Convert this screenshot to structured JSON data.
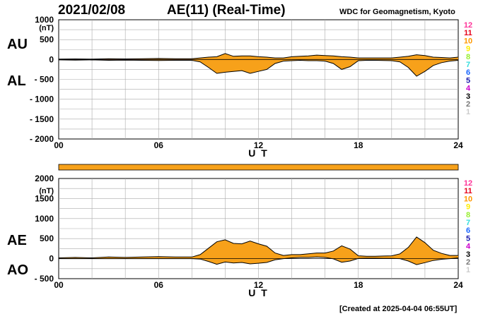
{
  "header": {
    "date": "2021/02/08",
    "title": "AE(11) (Real-Time)",
    "source": "WDC for Geomagnetism, Kyoto",
    "created": "[Created at 2025-04-04 06:55UT]"
  },
  "side_labels": {
    "top_upper": "AU",
    "top_lower": "AL",
    "bottom_upper": "AE",
    "bottom_lower": "AO"
  },
  "colors": {
    "fill": "#f7a11a",
    "outline": "#000000",
    "grid": "#aaaaaa"
  },
  "legend": {
    "items": [
      {
        "label": "12",
        "color": "#ff3399"
      },
      {
        "label": "11",
        "color": "#e6001a"
      },
      {
        "label": "10",
        "color": "#ff9900"
      },
      {
        "label": "9",
        "color": "#ffee00"
      },
      {
        "label": "8",
        "color": "#99ee33"
      },
      {
        "label": "7",
        "color": "#33dddd"
      },
      {
        "label": "6",
        "color": "#1a66ff"
      },
      {
        "label": "5",
        "color": "#1a1aaa"
      },
      {
        "label": "4",
        "color": "#cc00cc"
      },
      {
        "label": "3",
        "color": "#000000"
      },
      {
        "label": "2",
        "color": "#777777"
      },
      {
        "label": "1",
        "color": "#cccccc"
      }
    ]
  },
  "chart_data": [
    {
      "type": "area",
      "xlabel": "U T",
      "ylabel": "(nT)",
      "xlim": [
        0,
        24
      ],
      "ylim": [
        -2000,
        1000
      ],
      "x_ticks": [
        "00",
        "06",
        "12",
        "18",
        "24"
      ],
      "y_ticks": [
        "1000",
        "500",
        "0",
        "- 500",
        "- 1000",
        "- 1500",
        "- 2000"
      ],
      "grid": true,
      "series": [
        {
          "name": "AU",
          "x": [
            0,
            1,
            2,
            3,
            4,
            5,
            6,
            7,
            8,
            8.5,
            9,
            9.5,
            10,
            10.5,
            11,
            11.5,
            12,
            12.5,
            13,
            13.5,
            14,
            14.5,
            15,
            15.5,
            16,
            16.5,
            17,
            17.5,
            18,
            18.5,
            19,
            19.5,
            20,
            20.5,
            21,
            21.5,
            22,
            22.5,
            23,
            23.5,
            24
          ],
          "values": [
            10,
            15,
            10,
            20,
            15,
            20,
            25,
            20,
            20,
            40,
            60,
            70,
            150,
            80,
            90,
            90,
            70,
            60,
            40,
            40,
            70,
            80,
            90,
            110,
            100,
            90,
            70,
            60,
            40,
            40,
            40,
            40,
            40,
            60,
            80,
            120,
            100,
            60,
            50,
            40,
            60
          ]
        },
        {
          "name": "AL",
          "x": [
            0,
            1,
            2,
            3,
            4,
            5,
            6,
            7,
            8,
            8.5,
            9,
            9.5,
            10,
            10.5,
            11,
            11.5,
            12,
            12.5,
            13,
            13.5,
            14,
            14.5,
            15,
            15.5,
            16,
            16.5,
            17,
            17.5,
            18,
            18.5,
            19,
            19.5,
            20,
            20.5,
            21,
            21.5,
            22,
            22.5,
            23,
            23.5,
            24
          ],
          "values": [
            -10,
            -15,
            -10,
            -20,
            -15,
            -20,
            -25,
            -20,
            -20,
            -60,
            -200,
            -350,
            -320,
            -300,
            -280,
            -350,
            -300,
            -250,
            -100,
            -40,
            -30,
            -20,
            -30,
            -30,
            -40,
            -100,
            -250,
            -180,
            -30,
            -20,
            -20,
            -25,
            -30,
            -60,
            -200,
            -420,
            -300,
            -150,
            -80,
            -40,
            -20
          ]
        }
      ]
    },
    {
      "type": "area",
      "xlabel": "U T",
      "ylabel": "(nT)",
      "xlim": [
        0,
        24
      ],
      "ylim": [
        -500,
        2000
      ],
      "x_ticks": [
        "00",
        "06",
        "12",
        "18",
        "24"
      ],
      "y_ticks": [
        "2000",
        "1500",
        "1000",
        "500",
        "0",
        "- 500"
      ],
      "grid": true,
      "series": [
        {
          "name": "AE",
          "x": [
            0,
            1,
            2,
            3,
            4,
            5,
            6,
            7,
            8,
            8.5,
            9,
            9.5,
            10,
            10.5,
            11,
            11.5,
            12,
            12.5,
            13,
            13.5,
            14,
            14.5,
            15,
            15.5,
            16,
            16.5,
            17,
            17.5,
            18,
            18.5,
            19,
            19.5,
            20,
            20.5,
            21,
            21.5,
            22,
            22.5,
            23,
            23.5,
            24
          ],
          "values": [
            20,
            30,
            20,
            40,
            30,
            40,
            50,
            40,
            40,
            100,
            260,
            420,
            470,
            380,
            370,
            440,
            370,
            310,
            140,
            80,
            100,
            100,
            120,
            140,
            140,
            190,
            320,
            240,
            70,
            60,
            60,
            65,
            70,
            120,
            280,
            540,
            400,
            210,
            130,
            80,
            80
          ]
        },
        {
          "name": "AO",
          "x": [
            0,
            1,
            2,
            3,
            4,
            5,
            6,
            7,
            8,
            8.5,
            9,
            9.5,
            10,
            10.5,
            11,
            11.5,
            12,
            12.5,
            13,
            13.5,
            14,
            14.5,
            15,
            15.5,
            16,
            16.5,
            17,
            17.5,
            18,
            18.5,
            19,
            19.5,
            20,
            20.5,
            21,
            21.5,
            22,
            22.5,
            23,
            23.5,
            24
          ],
          "values": [
            0,
            0,
            0,
            0,
            0,
            0,
            0,
            0,
            0,
            -10,
            -70,
            -140,
            -85,
            -110,
            -95,
            -130,
            -115,
            -95,
            -30,
            0,
            20,
            30,
            30,
            40,
            30,
            -5,
            -90,
            -60,
            5,
            10,
            10,
            7,
            5,
            0,
            -60,
            -150,
            -100,
            -45,
            -15,
            0,
            20
          ]
        }
      ]
    }
  ]
}
